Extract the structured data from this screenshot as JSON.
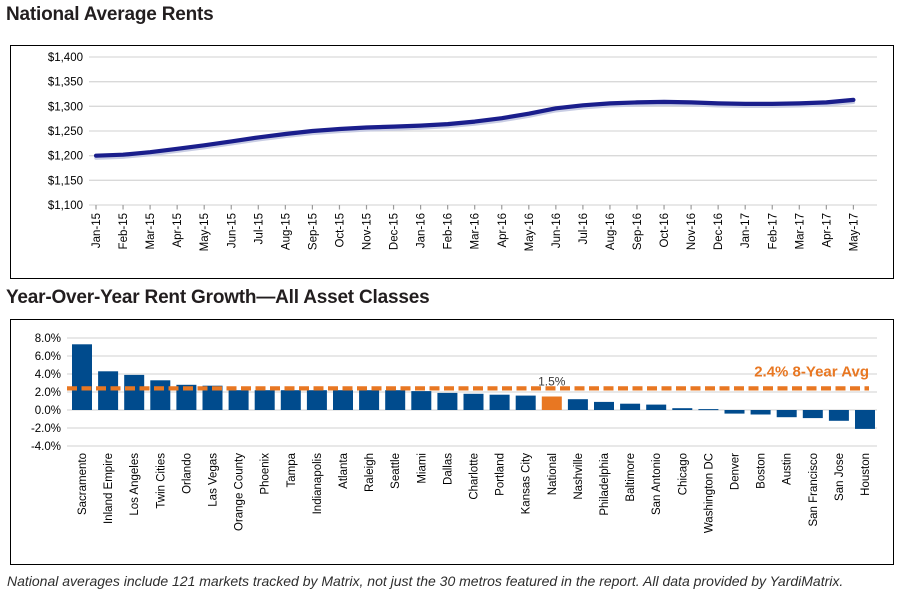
{
  "page": {
    "chart1_title": "National Average Rents",
    "chart2_title": "Year-Over-Year Rent Growth—All Asset Classes",
    "footnote": "National averages include 121 markets tracked by Matrix, not just the 30 metros featured in the report. All data provided by YardiMatrix."
  },
  "colors": {
    "line_navy": "#1a1e8c",
    "line_shadow": "#c9cde4",
    "bar_blue": "#004b8d",
    "accent_orange": "#e87722",
    "gridline": "#d9d9d9",
    "axis_text": "#000000",
    "point_label_text": "#3a3a3a"
  },
  "chart_data": [
    {
      "type": "line",
      "title": "National Average Rents",
      "x": [
        "Jan-15",
        "Feb-15",
        "Mar-15",
        "Apr-15",
        "May-15",
        "Jun-15",
        "Jul-15",
        "Aug-15",
        "Sep-15",
        "Oct-15",
        "Nov-15",
        "Dec-15",
        "Jan-16",
        "Feb-16",
        "Mar-16",
        "Apr-16",
        "May-16",
        "Jun-16",
        "Jul-16",
        "Aug-16",
        "Sep-16",
        "Oct-16",
        "Nov-16",
        "Dec-16",
        "Jan-17",
        "Feb-17",
        "Mar-17",
        "Apr-17",
        "May-17"
      ],
      "values": [
        1200,
        1202,
        1207,
        1214,
        1221,
        1229,
        1237,
        1244,
        1250,
        1254,
        1257,
        1259,
        1261,
        1264,
        1269,
        1276,
        1285,
        1296,
        1302,
        1306,
        1308,
        1309,
        1308,
        1306,
        1305,
        1305,
        1306,
        1308,
        1313
      ],
      "ylim": [
        1100,
        1400
      ],
      "ytick_step": 50,
      "ytick_labels": [
        "$1,400",
        "$1,350",
        "$1,300",
        "$1,250",
        "$1,200",
        "$1,150",
        "$1,100"
      ],
      "grid": true,
      "legend": "none"
    },
    {
      "type": "bar",
      "title": "Year-Over-Year Rent Growth—All Asset Classes",
      "categories": [
        "Sacramento",
        "Inland Empire",
        "Los Angeles",
        "Twin Cities",
        "Orlando",
        "Las Vegas",
        "Orange County",
        "Phoenix",
        "Tampa",
        "Indianapolis",
        "Atlanta",
        "Raleigh",
        "Seattle",
        "Miami",
        "Dallas",
        "Charlotte",
        "Portland",
        "Kansas City",
        "National",
        "Nashville",
        "Philadelphia",
        "Baltimore",
        "San Antonio",
        "Chicago",
        "Washington DC",
        "Denver",
        "Boston",
        "Austin",
        "San Francisco",
        "San Jose",
        "Houston"
      ],
      "values": [
        7.3,
        4.3,
        3.9,
        3.3,
        2.8,
        2.7,
        2.2,
        2.2,
        2.2,
        2.2,
        2.2,
        2.2,
        2.2,
        2.1,
        1.9,
        1.8,
        1.7,
        1.6,
        1.5,
        1.2,
        0.9,
        0.7,
        0.6,
        0.2,
        0.1,
        -0.4,
        -0.5,
        -0.8,
        -0.9,
        -1.2,
        -2.1
      ],
      "highlight_category": "National",
      "point_label": {
        "category": "National",
        "text": "1.5%"
      },
      "avg_line": {
        "value": 2.4,
        "label": "2.4% 8-Year Avg"
      },
      "ylim": [
        -4,
        8
      ],
      "ytick_step": 2,
      "ytick_labels": [
        "8.0%",
        "6.0%",
        "4.0%",
        "2.0%",
        "0.0%",
        "-2.0%",
        "-4.0%"
      ],
      "grid": true,
      "legend": "none"
    }
  ]
}
